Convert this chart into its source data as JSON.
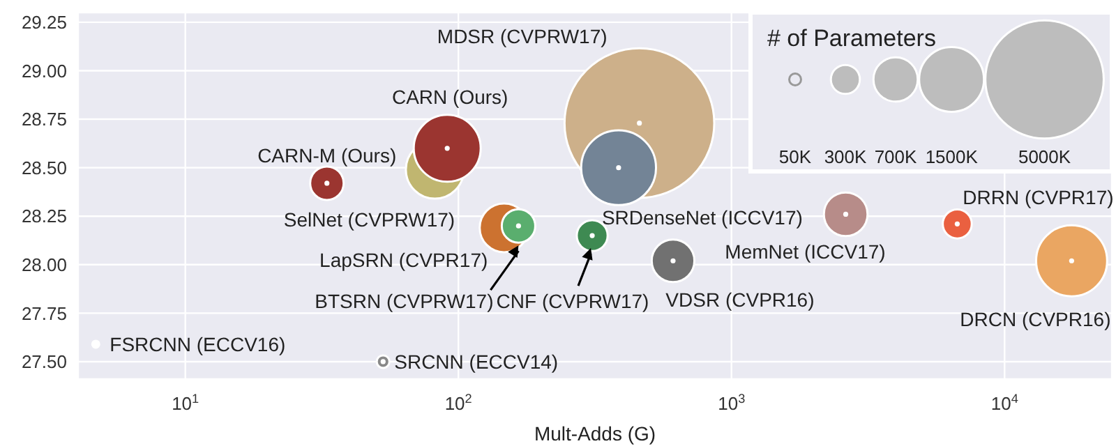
{
  "chart_data": {
    "type": "bubble",
    "xlabel": "Mult-Adds (G)",
    "legend_title": "# of Parameters",
    "grid": true,
    "log": "x",
    "xlim": [
      4.05,
      24700
    ],
    "xticks": [
      {
        "value": 10,
        "label": "10$^{1}$"
      },
      {
        "value": 100,
        "label": "10$^{2}$"
      },
      {
        "value": 1000,
        "label": "10$^{3}$"
      },
      {
        "value": 10000,
        "label": "10$^{4}$"
      }
    ],
    "ylim": [
      27.41,
      29.3
    ],
    "yticks": [
      {
        "value": 27.5,
        "label": "27.50"
      },
      {
        "value": 27.75,
        "label": "27.75"
      },
      {
        "value": 28,
        "label": "28.00"
      },
      {
        "value": 28.25,
        "label": "28.25"
      },
      {
        "value": 28.5,
        "label": "28.50"
      },
      {
        "value": 28.75,
        "label": "28.75"
      },
      {
        "value": 29,
        "label": "29.00"
      },
      {
        "value": 29.25,
        "label": "29.25"
      }
    ],
    "size_legend": [
      {
        "value": 50,
        "label": "50K"
      },
      {
        "value": 300,
        "label": "300K"
      },
      {
        "value": 700,
        "label": "700K"
      },
      {
        "value": 1500,
        "label": "1500K"
      },
      {
        "value": 5000,
        "label": "5000K"
      }
    ],
    "series": [
      {
        "name": "FSRCNN (ECCV16)",
        "color": "#ffffff",
        "x": [
          4.7
        ],
        "values": [
          27.59
        ],
        "sizes": [
          12
        ]
      },
      {
        "name": "SRCNN (ECCV14)",
        "color": "#888888",
        "x": [
          53
        ],
        "values": [
          27.5
        ],
        "sizes": [
          57
        ]
      },
      {
        "name": "SelNet (CVPRW17)",
        "color": "#c0b670",
        "x": [
          82
        ],
        "values": [
          28.49
        ],
        "sizes": [
          1200
        ]
      },
      {
        "name": "CARN-M (Ours)",
        "color": "#9b3530",
        "x": [
          33
        ],
        "values": [
          28.42
        ],
        "sizes": [
          400
        ]
      },
      {
        "name": "CARN (Ours)",
        "color": "#9b3530",
        "x": [
          91
        ],
        "values": [
          28.6
        ],
        "sizes": [
          1600
        ]
      },
      {
        "name": "LapSRN (CVPR17)",
        "color": "#cc7230",
        "x": [
          147
        ],
        "values": [
          28.19
        ],
        "sizes": [
          850
        ]
      },
      {
        "name": "BTSRN (CVPRW17)",
        "color": "#5aae6e",
        "x": [
          166
        ],
        "values": [
          28.2
        ],
        "sizes": [
          400
        ]
      },
      {
        "name": "CNF (CVPRW17)",
        "color": "#3e8a52",
        "x": [
          309
        ],
        "values": [
          28.15
        ],
        "sizes": [
          340
        ]
      },
      {
        "name": "MDSR (CVPRW17)",
        "color": "#cdb08a",
        "x": [
          460
        ],
        "values": [
          28.73
        ],
        "sizes": [
          8000
        ]
      },
      {
        "name": "SRDenseNet (ICCV17)",
        "color": "#738496",
        "x": [
          386
        ],
        "values": [
          28.5
        ],
        "sizes": [
          2000
        ]
      },
      {
        "name": "VDSR (CVPR16)",
        "color": "#717171",
        "x": [
          611
        ],
        "values": [
          28.02
        ],
        "sizes": [
          650
        ]
      },
      {
        "name": "MemNet (ICCV17)",
        "color": "#b78c89",
        "x": [
          2620
        ],
        "values": [
          28.26
        ],
        "sizes": [
          680
        ]
      },
      {
        "name": "DRRN (CVPR17)",
        "color": "#ea6040",
        "x": [
          6710
        ],
        "values": [
          28.21
        ],
        "sizes": [
          300
        ]
      },
      {
        "name": "DRCN (CVPR16)",
        "color": "#eaa662",
        "x": [
          17600
        ],
        "values": [
          28.02
        ],
        "sizes": [
          1800
        ]
      }
    ]
  }
}
